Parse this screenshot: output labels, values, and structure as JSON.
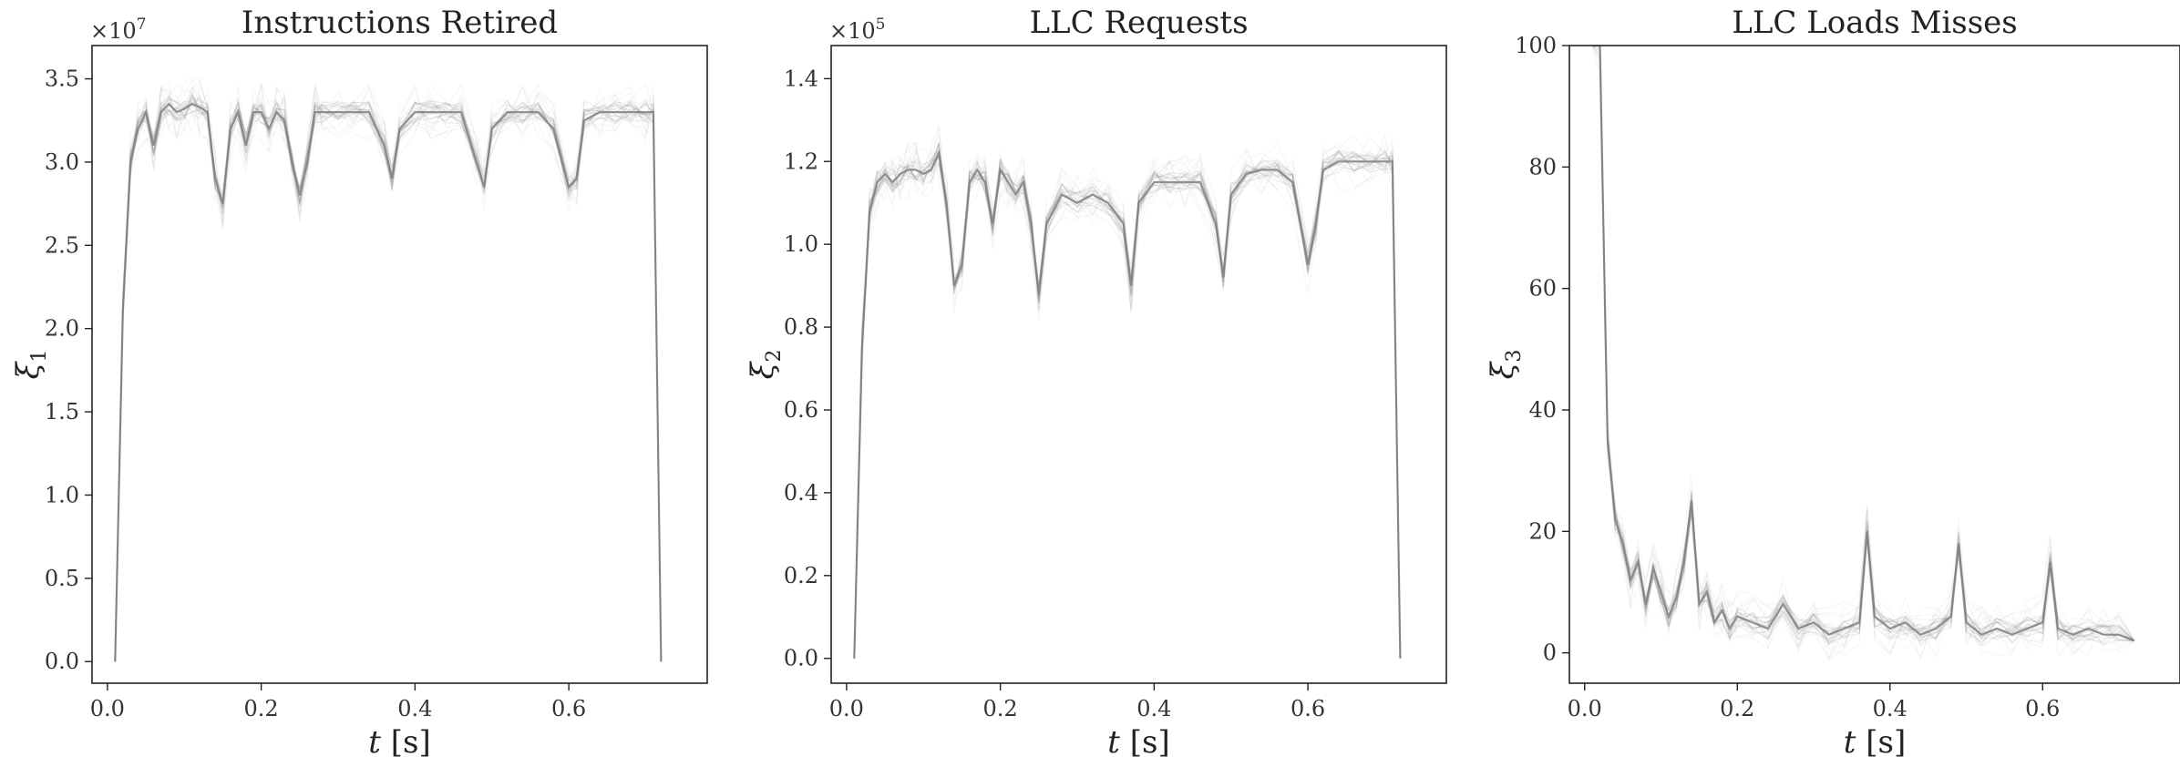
{
  "chart_data": [
    {
      "type": "line",
      "title": "Instructions Retired",
      "xlabel": "t [s]",
      "ylabel": "ξ1",
      "y_multiplier": "×10^7",
      "xlim": [
        -0.02,
        0.78
      ],
      "ylim": [
        -0.13,
        3.7
      ],
      "x_ticks": [
        0.0,
        0.2,
        0.4,
        0.6
      ],
      "y_ticks": [
        0.0,
        0.5,
        1.0,
        1.5,
        2.0,
        2.5,
        3.0,
        3.5
      ],
      "grid": false,
      "series_color": "#808080",
      "series": [
        {
          "x": [
            0.01,
            0.02,
            0.03,
            0.04,
            0.05,
            0.06,
            0.07,
            0.08,
            0.09,
            0.1,
            0.11,
            0.12,
            0.13,
            0.14,
            0.15,
            0.16,
            0.17,
            0.18,
            0.19,
            0.2,
            0.21,
            0.22,
            0.23,
            0.24,
            0.25,
            0.26,
            0.27,
            0.28,
            0.3,
            0.32,
            0.34,
            0.36,
            0.37,
            0.38,
            0.4,
            0.42,
            0.44,
            0.46,
            0.48,
            0.49,
            0.5,
            0.52,
            0.54,
            0.56,
            0.58,
            0.6,
            0.61,
            0.62,
            0.64,
            0.66,
            0.68,
            0.7,
            0.71,
            0.72
          ],
          "values": [
            0.0,
            2.1,
            3.0,
            3.2,
            3.3,
            3.1,
            3.3,
            3.35,
            3.3,
            3.32,
            3.35,
            3.33,
            3.3,
            2.9,
            2.75,
            3.2,
            3.3,
            3.1,
            3.3,
            3.3,
            3.2,
            3.3,
            3.25,
            3.0,
            2.8,
            3.0,
            3.3,
            3.3,
            3.3,
            3.3,
            3.3,
            3.1,
            2.9,
            3.2,
            3.3,
            3.3,
            3.3,
            3.3,
            3.0,
            2.85,
            3.2,
            3.3,
            3.3,
            3.3,
            3.2,
            2.85,
            2.9,
            3.25,
            3.3,
            3.3,
            3.3,
            3.3,
            3.3,
            0.0
          ]
        }
      ]
    },
    {
      "type": "line",
      "title": "LLC Requests",
      "xlabel": "t [s]",
      "ylabel": "ξ2",
      "y_multiplier": "×10^5",
      "xlim": [
        -0.02,
        0.78
      ],
      "ylim": [
        -0.06,
        1.48
      ],
      "x_ticks": [
        0.0,
        0.2,
        0.4,
        0.6
      ],
      "y_ticks": [
        0.0,
        0.2,
        0.4,
        0.6,
        0.8,
        1.0,
        1.2,
        1.4
      ],
      "grid": false,
      "series_color": "#808080",
      "series": [
        {
          "x": [
            0.01,
            0.02,
            0.03,
            0.04,
            0.05,
            0.06,
            0.07,
            0.08,
            0.09,
            0.1,
            0.11,
            0.12,
            0.13,
            0.14,
            0.15,
            0.16,
            0.17,
            0.18,
            0.19,
            0.2,
            0.21,
            0.22,
            0.23,
            0.24,
            0.25,
            0.26,
            0.28,
            0.3,
            0.32,
            0.34,
            0.36,
            0.37,
            0.38,
            0.4,
            0.42,
            0.44,
            0.46,
            0.48,
            0.49,
            0.5,
            0.52,
            0.54,
            0.56,
            0.58,
            0.6,
            0.61,
            0.62,
            0.64,
            0.66,
            0.68,
            0.7,
            0.71,
            0.72
          ],
          "values": [
            0.0,
            0.75,
            1.08,
            1.15,
            1.17,
            1.15,
            1.17,
            1.18,
            1.18,
            1.17,
            1.18,
            1.22,
            1.1,
            0.9,
            0.95,
            1.15,
            1.18,
            1.15,
            1.05,
            1.18,
            1.15,
            1.12,
            1.15,
            1.05,
            0.88,
            1.05,
            1.12,
            1.1,
            1.12,
            1.1,
            1.05,
            0.9,
            1.1,
            1.15,
            1.15,
            1.15,
            1.15,
            1.05,
            0.92,
            1.12,
            1.17,
            1.18,
            1.18,
            1.15,
            0.95,
            1.05,
            1.18,
            1.2,
            1.2,
            1.2,
            1.2,
            1.2,
            0.0
          ]
        }
      ]
    },
    {
      "type": "line",
      "title": "LLC Loads Misses",
      "xlabel": "t [s]",
      "ylabel": "ξ3",
      "xlim": [
        -0.02,
        0.78
      ],
      "ylim": [
        -5,
        100
      ],
      "x_ticks": [
        0.0,
        0.2,
        0.4,
        0.6
      ],
      "y_ticks": [
        0,
        20,
        40,
        60,
        80,
        100
      ],
      "grid": false,
      "series_color": "#808080",
      "series": [
        {
          "x": [
            0.01,
            0.02,
            0.03,
            0.04,
            0.05,
            0.06,
            0.07,
            0.08,
            0.09,
            0.1,
            0.11,
            0.12,
            0.13,
            0.14,
            0.15,
            0.16,
            0.17,
            0.18,
            0.19,
            0.2,
            0.22,
            0.24,
            0.26,
            0.28,
            0.3,
            0.32,
            0.34,
            0.36,
            0.37,
            0.38,
            0.4,
            0.42,
            0.44,
            0.46,
            0.48,
            0.49,
            0.5,
            0.52,
            0.54,
            0.56,
            0.58,
            0.6,
            0.61,
            0.62,
            0.64,
            0.66,
            0.68,
            0.7,
            0.72
          ],
          "values": [
            100,
            100,
            35,
            22,
            18,
            12,
            15,
            8,
            14,
            10,
            6,
            9,
            15,
            25,
            8,
            10,
            5,
            7,
            4,
            6,
            5,
            4,
            8,
            4,
            5,
            3,
            4,
            5,
            20,
            6,
            4,
            5,
            3,
            4,
            6,
            18,
            5,
            3,
            4,
            3,
            4,
            5,
            15,
            4,
            3,
            4,
            3,
            3,
            2
          ]
        }
      ]
    }
  ]
}
